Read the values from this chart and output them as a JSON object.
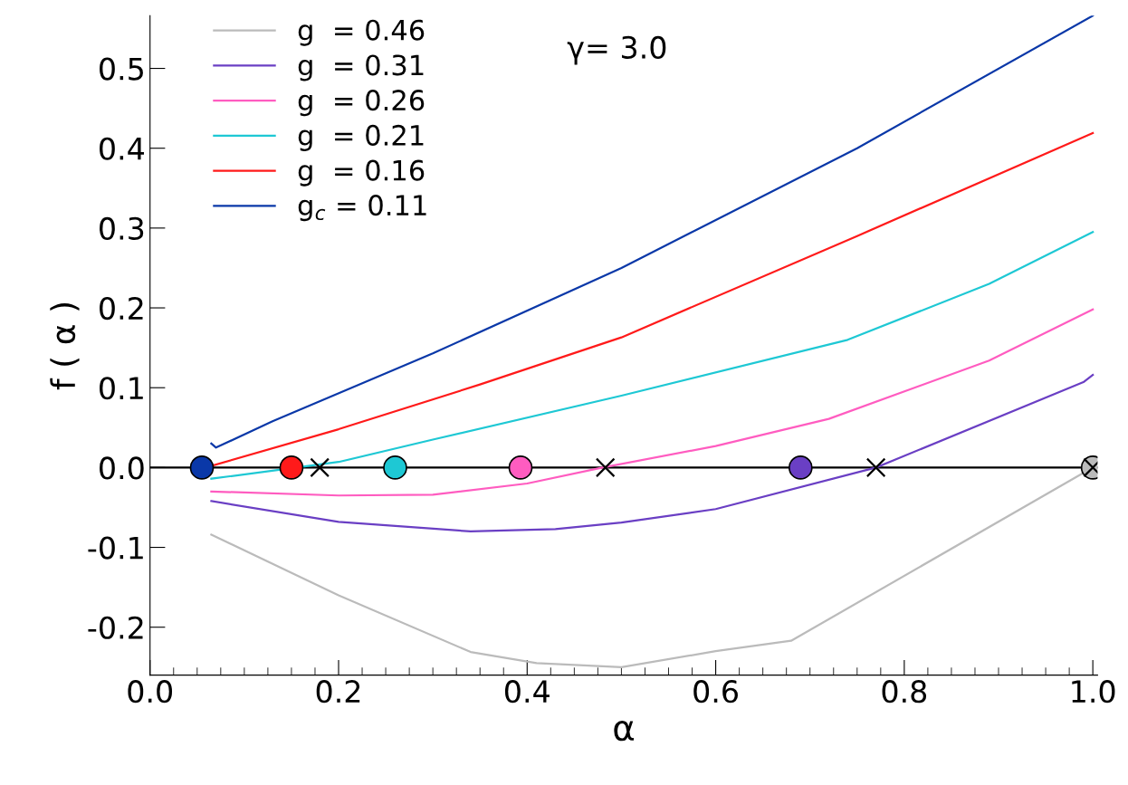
{
  "chart_data": {
    "type": "line",
    "xlabel": "α",
    "ylabel": "f ( α )",
    "annotations": [
      "γ= 3.0"
    ],
    "xlim": [
      0,
      1.005
    ],
    "ylim": [
      -0.26,
      0.566
    ],
    "xticks": [
      {
        "value": 0,
        "label": "0.0"
      },
      0.2,
      0.4,
      0.6,
      0.8,
      {
        "value": 1,
        "label": "1.0"
      }
    ],
    "yticks": [
      {
        "value": -0.2,
        "label": "-0.2"
      },
      {
        "value": -0.1,
        "label": "-0.1"
      },
      {
        "value": 0,
        "label": "0.0"
      },
      0.1,
      0.2,
      0.3,
      0.4,
      0.5
    ],
    "legend": "top left",
    "grid": false,
    "marker": "none",
    "line_style": "solid",
    "ref_lines": [
      {
        "axis": "y",
        "value": 0,
        "color": "#000000"
      }
    ],
    "series": [
      {
        "name": "g  = 0.46",
        "color": "#bbbbbb",
        "x": [
          0.065,
          0.2,
          0.34,
          0.41,
          0.5,
          0.6,
          0.68,
          1.0
        ],
        "values": [
          -0.084,
          -0.16,
          -0.231,
          -0.245,
          -0.25,
          -0.23,
          -0.217,
          0.0
        ]
      },
      {
        "name": "g  = 0.31",
        "color": "#6a3fc4",
        "x": [
          0.065,
          0.2,
          0.34,
          0.43,
          0.5,
          0.6,
          0.77,
          0.99,
          1.0
        ],
        "values": [
          -0.042,
          -0.068,
          -0.08,
          -0.077,
          -0.069,
          -0.052,
          0.0,
          0.107,
          0.116
        ]
      },
      {
        "name": "g  = 0.26",
        "color": "#ff5cc0",
        "x": [
          0.065,
          0.2,
          0.3,
          0.4,
          0.48,
          0.6,
          0.72,
          0.89,
          1.0
        ],
        "values": [
          -0.03,
          -0.035,
          -0.034,
          -0.02,
          0.0,
          0.027,
          0.061,
          0.134,
          0.198
        ]
      },
      {
        "name": "g  = 0.21",
        "color": "#1ec8d4",
        "x": [
          0.065,
          0.2,
          0.3,
          0.5,
          0.74,
          0.89,
          1.0
        ],
        "values": [
          -0.014,
          0.007,
          0.035,
          0.09,
          0.16,
          0.23,
          0.295
        ]
      },
      {
        "name": "g  = 0.16",
        "color": "#ff1a1a",
        "x": [
          0.065,
          0.2,
          0.35,
          0.5,
          0.75,
          1.0
        ],
        "values": [
          0.002,
          0.048,
          0.104,
          0.163,
          0.29,
          0.419
        ]
      },
      {
        "name": "g$_{c}$ = 0.11",
        "color": "#0a38a8",
        "x": [
          0.065,
          0.07,
          0.13,
          0.3,
          0.5,
          0.75,
          1.0
        ],
        "values": [
          0.03,
          0.025,
          0.058,
          0.143,
          0.25,
          0.4,
          0.566
        ]
      },
      {
        "type": "scatter",
        "marker": "circle",
        "x": [
          0.055,
          0.15,
          0.26,
          0.393,
          0.69,
          1.0
        ],
        "values": [
          0,
          0,
          0,
          0,
          0,
          0
        ],
        "colors": [
          "#0a38a8",
          "#ff1a1a",
          "#1ec8d4",
          "#ff5cc0",
          "#6a3fc4",
          "#bbbbbb"
        ]
      },
      {
        "type": "scatter",
        "marker": "cross",
        "color": "#000000",
        "x": [
          0.18,
          0.483,
          0.77,
          1.0
        ],
        "values": [
          0,
          0,
          0,
          0
        ]
      }
    ]
  }
}
